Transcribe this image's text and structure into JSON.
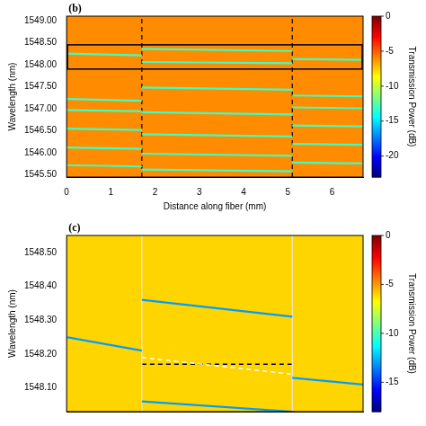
{
  "chart_data": [
    {
      "type": "heatmap",
      "panel": "(b)",
      "x_label": "Distance along fiber (mm)",
      "y_label": "Wavelength (nm)",
      "xlim": [
        0,
        6.7
      ],
      "xticks": [
        0,
        1,
        2,
        3,
        4,
        5,
        6
      ],
      "ylim": [
        1545.45,
        1549.1
      ],
      "yticks": [
        {
          "value": 1545.5,
          "label": "1545.50"
        },
        {
          "value": 1546,
          "label": "1546.00"
        },
        {
          "value": 1546.5,
          "label": "1546.50"
        },
        {
          "value": 1547,
          "label": "1547.00"
        },
        {
          "value": 1547.5,
          "label": "1547.50"
        },
        {
          "value": 1548,
          "label": "1548.00"
        },
        {
          "value": 1548.5,
          "label": "1548.50"
        },
        {
          "value": 1549,
          "label": "1549.00"
        }
      ],
      "background": -6,
      "colorbar": {
        "label": "Transmission Power (dB)",
        "range": [
          -23,
          0
        ],
        "ticks": [
          0,
          -5,
          -10,
          -15,
          -20
        ]
      },
      "resonances": [
        {
          "x": [
            0,
            1.7
          ],
          "power": -13,
          "values": [
            [
              1548.25,
              1548.21
            ],
            [
              1547.22,
              1547.18
            ],
            [
              1546.97,
              1546.94
            ],
            [
              1546.55,
              1546.52
            ],
            [
              1546.12,
              1546.09
            ],
            [
              1545.72,
              1545.69
            ]
          ]
        },
        {
          "x": [
            1.7,
            5.1
          ],
          "power": -13,
          "values": [
            [
              1548.36,
              1548.31
            ],
            [
              1548.06,
              1548.03
            ],
            [
              1547.48,
              1547.43
            ],
            [
              1546.92,
              1546.87
            ],
            [
              1546.42,
              1546.37
            ],
            [
              1545.98,
              1545.93
            ],
            [
              1545.62,
              1545.58
            ]
          ]
        },
        {
          "x": [
            5.1,
            6.7
          ],
          "power": -13,
          "values": [
            [
              1548.13,
              1548.11
            ],
            [
              1547.3,
              1547.28
            ],
            [
              1547.03,
              1547.01
            ],
            [
              1546.62,
              1546.6
            ],
            [
              1546.2,
              1546.18
            ],
            [
              1545.78,
              1545.76
            ]
          ]
        }
      ],
      "fit_lines": [],
      "boundaries": {
        "x": [
          1.7,
          5.1
        ],
        "color": "#000000",
        "line_style": "dashed"
      },
      "highlight_box": {
        "xlim": [
          0,
          6.7
        ],
        "ylim": [
          1547.9,
          1548.45
        ]
      },
      "tick_labels": true,
      "grid": false
    },
    {
      "type": "heatmap",
      "panel": "(c)",
      "y_label": "Wavelength (nm)",
      "xlim": [
        0,
        6.7
      ],
      "ylim": [
        1548.03,
        1548.55
      ],
      "yticks": [
        {
          "value": 1548.1,
          "label": "1548.10"
        },
        {
          "value": 1548.2,
          "label": "1548.20"
        },
        {
          "value": 1548.3,
          "label": "1548.30"
        },
        {
          "value": 1548.4,
          "label": "1548.40"
        },
        {
          "value": 1548.5,
          "label": "1548.50"
        }
      ],
      "background": -6,
      "colorbar": {
        "label": "Transmission Power (dB)",
        "range": [
          -18,
          0
        ],
        "ticks": [
          0,
          -5,
          -10,
          -15
        ]
      },
      "resonances": [
        {
          "x": [
            0,
            1.7
          ],
          "power": -13,
          "values": [
            [
              1548.25,
              1548.21
            ]
          ]
        },
        {
          "x": [
            1.7,
            5.1
          ],
          "power": -13,
          "values": [
            [
              1548.36,
              1548.31
            ],
            [
              1548.06,
              1548.03
            ]
          ]
        },
        {
          "x": [
            5.1,
            6.7
          ],
          "power": -13,
          "values": [
            [
              1548.13,
              1548.11
            ]
          ]
        }
      ],
      "fit_lines": [
        {
          "x": [
            0,
            1.7
          ],
          "values": [
            1548.25,
            1548.21
          ],
          "color": "#ffffff",
          "line_style": "dashed"
        },
        {
          "x": [
            1.7,
            5.1
          ],
          "values": [
            1548.36,
            1548.31
          ],
          "color": "#ffffff",
          "line_style": "dashed"
        },
        {
          "x": [
            1.7,
            5.1
          ],
          "values": [
            1548.19,
            1548.14
          ],
          "color": "#ffffff",
          "line_style": "dashed"
        },
        {
          "x": [
            1.7,
            5.1
          ],
          "values": [
            1548.17,
            1548.17
          ],
          "color": "#000000",
          "line_style": "dashed"
        },
        {
          "x": [
            5.1,
            6.7
          ],
          "values": [
            1548.13,
            1548.11
          ],
          "color": "#ffffff",
          "line_style": "dashed"
        }
      ],
      "boundaries": {
        "x": [
          1.7,
          5.1
        ],
        "color": "#e8e8e8",
        "line_style": "solid"
      },
      "tick_labels": "y",
      "grid": false
    }
  ]
}
